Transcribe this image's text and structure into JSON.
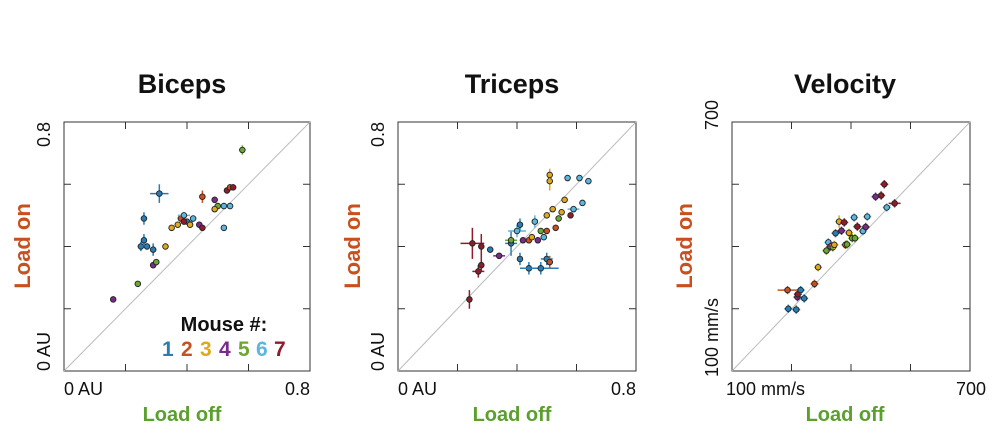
{
  "colors": {
    "mouse": [
      "#2a7db3",
      "#c8501e",
      "#e0a81c",
      "#7a2a8a",
      "#6aa832",
      "#5bb6e0",
      "#8e1c2a"
    ],
    "load_on": "#c8501e",
    "load_off": "#5aa02c",
    "diagonal": "#bbbbbb"
  },
  "legend": {
    "title": "Mouse #:",
    "numbers": [
      "1",
      "2",
      "3",
      "4",
      "5",
      "6",
      "7"
    ]
  },
  "chart_data": [
    {
      "type": "scatter",
      "title": "Biceps",
      "xlabel": "Load off",
      "ylabel": "Load on",
      "xlim": [
        0,
        0.8
      ],
      "ylim": [
        0,
        0.8
      ],
      "x_ticks": [
        "0 AU",
        "0.8"
      ],
      "y_ticks": [
        "0 AU",
        "0.8"
      ],
      "diagonal": true,
      "points": [
        {
          "mouse": 4,
          "x": 0.16,
          "y": 0.23,
          "xerr": 0.005,
          "yerr": 0.005
        },
        {
          "mouse": 5,
          "x": 0.24,
          "y": 0.28,
          "xerr": 0.005,
          "yerr": 0.005
        },
        {
          "mouse": 1,
          "x": 0.25,
          "y": 0.4,
          "xerr": 0.01,
          "yerr": 0.015
        },
        {
          "mouse": 1,
          "x": 0.27,
          "y": 0.4,
          "xerr": 0.01,
          "yerr": 0.01
        },
        {
          "mouse": 1,
          "x": 0.26,
          "y": 0.42,
          "xerr": 0.005,
          "yerr": 0.02
        },
        {
          "mouse": 1,
          "x": 0.26,
          "y": 0.49,
          "xerr": 0.005,
          "yerr": 0.02
        },
        {
          "mouse": 1,
          "x": 0.29,
          "y": 0.39,
          "xerr": 0.01,
          "yerr": 0.02
        },
        {
          "mouse": 4,
          "x": 0.29,
          "y": 0.34,
          "xerr": 0.01,
          "yerr": 0.01
        },
        {
          "mouse": 5,
          "x": 0.3,
          "y": 0.35,
          "xerr": 0.01,
          "yerr": 0.01
        },
        {
          "mouse": 1,
          "x": 0.31,
          "y": 0.57,
          "xerr": 0.03,
          "yerr": 0.03
        },
        {
          "mouse": 3,
          "x": 0.33,
          "y": 0.4,
          "xerr": 0.01,
          "yerr": 0.01
        },
        {
          "mouse": 3,
          "x": 0.35,
          "y": 0.46,
          "xerr": 0.01,
          "yerr": 0.01
        },
        {
          "mouse": 3,
          "x": 0.37,
          "y": 0.47,
          "xerr": 0.01,
          "yerr": 0.01
        },
        {
          "mouse": 2,
          "x": 0.38,
          "y": 0.49,
          "xerr": 0.01,
          "yerr": 0.01
        },
        {
          "mouse": 6,
          "x": 0.39,
          "y": 0.5,
          "xerr": 0.02,
          "yerr": 0.01
        },
        {
          "mouse": 1,
          "x": 0.4,
          "y": 0.48,
          "xerr": 0.02,
          "yerr": 0.01
        },
        {
          "mouse": 7,
          "x": 0.39,
          "y": 0.48,
          "xerr": 0.01,
          "yerr": 0.01
        },
        {
          "mouse": 3,
          "x": 0.41,
          "y": 0.47,
          "xerr": 0.01,
          "yerr": 0.01
        },
        {
          "mouse": 6,
          "x": 0.42,
          "y": 0.49,
          "xerr": 0.01,
          "yerr": 0.01
        },
        {
          "mouse": 4,
          "x": 0.44,
          "y": 0.47,
          "xerr": 0.01,
          "yerr": 0.01
        },
        {
          "mouse": 7,
          "x": 0.45,
          "y": 0.46,
          "xerr": 0.01,
          "yerr": 0.01
        },
        {
          "mouse": 2,
          "x": 0.45,
          "y": 0.56,
          "xerr": 0.01,
          "yerr": 0.02
        },
        {
          "mouse": 4,
          "x": 0.49,
          "y": 0.55,
          "xerr": 0.01,
          "yerr": 0.01
        },
        {
          "mouse": 5,
          "x": 0.5,
          "y": 0.53,
          "xerr": 0.01,
          "yerr": 0.01
        },
        {
          "mouse": 3,
          "x": 0.49,
          "y": 0.52,
          "xerr": 0.01,
          "yerr": 0.01
        },
        {
          "mouse": 6,
          "x": 0.52,
          "y": 0.53,
          "xerr": 0.01,
          "yerr": 0.01
        },
        {
          "mouse": 7,
          "x": 0.53,
          "y": 0.58,
          "xerr": 0.01,
          "yerr": 0.01
        },
        {
          "mouse": 2,
          "x": 0.54,
          "y": 0.59,
          "xerr": 0.01,
          "yerr": 0.01
        },
        {
          "mouse": 7,
          "x": 0.55,
          "y": 0.59,
          "xerr": 0.01,
          "yerr": 0.01
        },
        {
          "mouse": 6,
          "x": 0.54,
          "y": 0.53,
          "xerr": 0.01,
          "yerr": 0.01
        },
        {
          "mouse": 6,
          "x": 0.52,
          "y": 0.46,
          "xerr": 0.01,
          "yerr": 0.01
        },
        {
          "mouse": 5,
          "x": 0.58,
          "y": 0.71,
          "xerr": 0.01,
          "yerr": 0.015
        }
      ]
    },
    {
      "type": "scatter",
      "title": "Triceps",
      "xlabel": "Load off",
      "ylabel": "Load on",
      "xlim": [
        0,
        0.8
      ],
      "ylim": [
        0,
        0.8
      ],
      "x_ticks": [
        "0 AU",
        "0.8"
      ],
      "y_ticks": [
        "0 AU",
        "0.8"
      ],
      "diagonal": true,
      "points": [
        {
          "mouse": 7,
          "x": 0.24,
          "y": 0.23,
          "xerr": 0.01,
          "yerr": 0.03
        },
        {
          "mouse": 7,
          "x": 0.25,
          "y": 0.41,
          "xerr": 0.04,
          "yerr": 0.05
        },
        {
          "mouse": 7,
          "x": 0.27,
          "y": 0.32,
          "xerr": 0.02,
          "yerr": 0.02
        },
        {
          "mouse": 7,
          "x": 0.28,
          "y": 0.34,
          "xerr": 0.01,
          "yerr": 0.02
        },
        {
          "mouse": 7,
          "x": 0.28,
          "y": 0.4,
          "xerr": 0.01,
          "yerr": 0.04
        },
        {
          "mouse": 1,
          "x": 0.31,
          "y": 0.39,
          "xerr": 0.01,
          "yerr": 0.01
        },
        {
          "mouse": 4,
          "x": 0.34,
          "y": 0.37,
          "xerr": 0.02,
          "yerr": 0.01
        },
        {
          "mouse": 1,
          "x": 0.38,
          "y": 0.41,
          "xerr": 0.02,
          "yerr": 0.04
        },
        {
          "mouse": 5,
          "x": 0.38,
          "y": 0.42,
          "xerr": 0.02,
          "yerr": 0.01
        },
        {
          "mouse": 6,
          "x": 0.4,
          "y": 0.45,
          "xerr": 0.03,
          "yerr": 0.02
        },
        {
          "mouse": 1,
          "x": 0.41,
          "y": 0.36,
          "xerr": 0.01,
          "yerr": 0.02
        },
        {
          "mouse": 1,
          "x": 0.41,
          "y": 0.47,
          "xerr": 0.01,
          "yerr": 0.02
        },
        {
          "mouse": 4,
          "x": 0.42,
          "y": 0.42,
          "xerr": 0.01,
          "yerr": 0.01
        },
        {
          "mouse": 1,
          "x": 0.44,
          "y": 0.33,
          "xerr": 0.03,
          "yerr": 0.02
        },
        {
          "mouse": 2,
          "x": 0.44,
          "y": 0.42,
          "xerr": 0.01,
          "yerr": 0.01
        },
        {
          "mouse": 3,
          "x": 0.45,
          "y": 0.43,
          "xerr": 0.01,
          "yerr": 0.01
        },
        {
          "mouse": 6,
          "x": 0.46,
          "y": 0.48,
          "xerr": 0.01,
          "yerr": 0.02
        },
        {
          "mouse": 4,
          "x": 0.47,
          "y": 0.42,
          "xerr": 0.01,
          "yerr": 0.01
        },
        {
          "mouse": 1,
          "x": 0.48,
          "y": 0.33,
          "xerr": 0.06,
          "yerr": 0.02
        },
        {
          "mouse": 5,
          "x": 0.48,
          "y": 0.45,
          "xerr": 0.01,
          "yerr": 0.01
        },
        {
          "mouse": 6,
          "x": 0.49,
          "y": 0.43,
          "xerr": 0.01,
          "yerr": 0.01
        },
        {
          "mouse": 2,
          "x": 0.5,
          "y": 0.45,
          "xerr": 0.01,
          "yerr": 0.01
        },
        {
          "mouse": 3,
          "x": 0.5,
          "y": 0.5,
          "xerr": 0.01,
          "yerr": 0.01
        },
        {
          "mouse": 1,
          "x": 0.5,
          "y": 0.36,
          "xerr": 0.02,
          "yerr": 0.02
        },
        {
          "mouse": 2,
          "x": 0.51,
          "y": 0.35,
          "xerr": 0.01,
          "yerr": 0.02
        },
        {
          "mouse": 3,
          "x": 0.51,
          "y": 0.61,
          "xerr": 0.01,
          "yerr": 0.03
        },
        {
          "mouse": 3,
          "x": 0.51,
          "y": 0.63,
          "xerr": 0.01,
          "yerr": 0.02
        },
        {
          "mouse": 3,
          "x": 0.52,
          "y": 0.52,
          "xerr": 0.01,
          "yerr": 0.01
        },
        {
          "mouse": 2,
          "x": 0.53,
          "y": 0.46,
          "xerr": 0.01,
          "yerr": 0.01
        },
        {
          "mouse": 5,
          "x": 0.54,
          "y": 0.49,
          "xerr": 0.01,
          "yerr": 0.01
        },
        {
          "mouse": 3,
          "x": 0.55,
          "y": 0.51,
          "xerr": 0.01,
          "yerr": 0.01
        },
        {
          "mouse": 3,
          "x": 0.56,
          "y": 0.55,
          "xerr": 0.01,
          "yerr": 0.01
        },
        {
          "mouse": 6,
          "x": 0.57,
          "y": 0.62,
          "xerr": 0.01,
          "yerr": 0.01
        },
        {
          "mouse": 7,
          "x": 0.58,
          "y": 0.5,
          "xerr": 0.01,
          "yerr": 0.01
        },
        {
          "mouse": 6,
          "x": 0.59,
          "y": 0.52,
          "xerr": 0.02,
          "yerr": 0.01
        },
        {
          "mouse": 6,
          "x": 0.61,
          "y": 0.62,
          "xerr": 0.01,
          "yerr": 0.01
        },
        {
          "mouse": 6,
          "x": 0.62,
          "y": 0.54,
          "xerr": 0.01,
          "yerr": 0.01
        },
        {
          "mouse": 6,
          "x": 0.64,
          "y": 0.61,
          "xerr": 0.01,
          "yerr": 0.01
        }
      ]
    },
    {
      "type": "scatter",
      "title": "Velocity",
      "xlabel": "Load off",
      "ylabel": "Load on",
      "xlim": [
        100,
        700
      ],
      "ylim": [
        100,
        700
      ],
      "x_ticks": [
        "100 mm/s",
        "700"
      ],
      "y_ticks": [
        "100 mm/s",
        "700"
      ],
      "diagonal": true,
      "points": [
        {
          "mouse": 1,
          "x": 242,
          "y": 250,
          "xerr": 10,
          "yerr": 10
        },
        {
          "mouse": 1,
          "x": 262,
          "y": 248,
          "xerr": 10,
          "yerr": 10
        },
        {
          "mouse": 2,
          "x": 240,
          "y": 295,
          "xerr": 25,
          "yerr": 10
        },
        {
          "mouse": 4,
          "x": 265,
          "y": 278,
          "xerr": 10,
          "yerr": 10
        },
        {
          "mouse": 7,
          "x": 266,
          "y": 285,
          "xerr": 10,
          "yerr": 10
        },
        {
          "mouse": 1,
          "x": 273,
          "y": 295,
          "xerr": 10,
          "yerr": 10
        },
        {
          "mouse": 1,
          "x": 282,
          "y": 275,
          "xerr": 10,
          "yerr": 10
        },
        {
          "mouse": 2,
          "x": 308,
          "y": 310,
          "xerr": 10,
          "yerr": 10
        },
        {
          "mouse": 3,
          "x": 317,
          "y": 350,
          "xerr": 10,
          "yerr": 10
        },
        {
          "mouse": 5,
          "x": 338,
          "y": 390,
          "xerr": 10,
          "yerr": 10
        },
        {
          "mouse": 6,
          "x": 343,
          "y": 410,
          "xerr": 10,
          "yerr": 10
        },
        {
          "mouse": 4,
          "x": 348,
          "y": 400,
          "xerr": 10,
          "yerr": 10
        },
        {
          "mouse": 5,
          "x": 354,
          "y": 398,
          "xerr": 10,
          "yerr": 10
        },
        {
          "mouse": 3,
          "x": 358,
          "y": 404,
          "xerr": 10,
          "yerr": 10
        },
        {
          "mouse": 1,
          "x": 361,
          "y": 432,
          "xerr": 10,
          "yerr": 10
        },
        {
          "mouse": 3,
          "x": 370,
          "y": 460,
          "xerr": 10,
          "yerr": 15
        },
        {
          "mouse": 4,
          "x": 376,
          "y": 438,
          "xerr": 10,
          "yerr": 10
        },
        {
          "mouse": 7,
          "x": 383,
          "y": 458,
          "xerr": 10,
          "yerr": 10
        },
        {
          "mouse": 2,
          "x": 386,
          "y": 404,
          "xerr": 10,
          "yerr": 10
        },
        {
          "mouse": 5,
          "x": 390,
          "y": 405,
          "xerr": 10,
          "yerr": 10
        },
        {
          "mouse": 3,
          "x": 395,
          "y": 433,
          "xerr": 10,
          "yerr": 10
        },
        {
          "mouse": 5,
          "x": 403,
          "y": 420,
          "xerr": 10,
          "yerr": 10
        },
        {
          "mouse": 5,
          "x": 410,
          "y": 420,
          "xerr": 10,
          "yerr": 10
        },
        {
          "mouse": 6,
          "x": 408,
          "y": 470,
          "xerr": 10,
          "yerr": 10
        },
        {
          "mouse": 7,
          "x": 416,
          "y": 448,
          "xerr": 10,
          "yerr": 10
        },
        {
          "mouse": 6,
          "x": 430,
          "y": 437,
          "xerr": 10,
          "yerr": 10
        },
        {
          "mouse": 4,
          "x": 437,
          "y": 447,
          "xerr": 10,
          "yerr": 10
        },
        {
          "mouse": 6,
          "x": 441,
          "y": 472,
          "xerr": 10,
          "yerr": 10
        },
        {
          "mouse": 4,
          "x": 462,
          "y": 520,
          "xerr": 10,
          "yerr": 10
        },
        {
          "mouse": 7,
          "x": 476,
          "y": 523,
          "xerr": 10,
          "yerr": 10
        },
        {
          "mouse": 7,
          "x": 484,
          "y": 550,
          "xerr": 10,
          "yerr": 10
        },
        {
          "mouse": 6,
          "x": 490,
          "y": 494,
          "xerr": 10,
          "yerr": 10
        },
        {
          "mouse": 7,
          "x": 510,
          "y": 504,
          "xerr": 15,
          "yerr": 10
        }
      ]
    }
  ]
}
